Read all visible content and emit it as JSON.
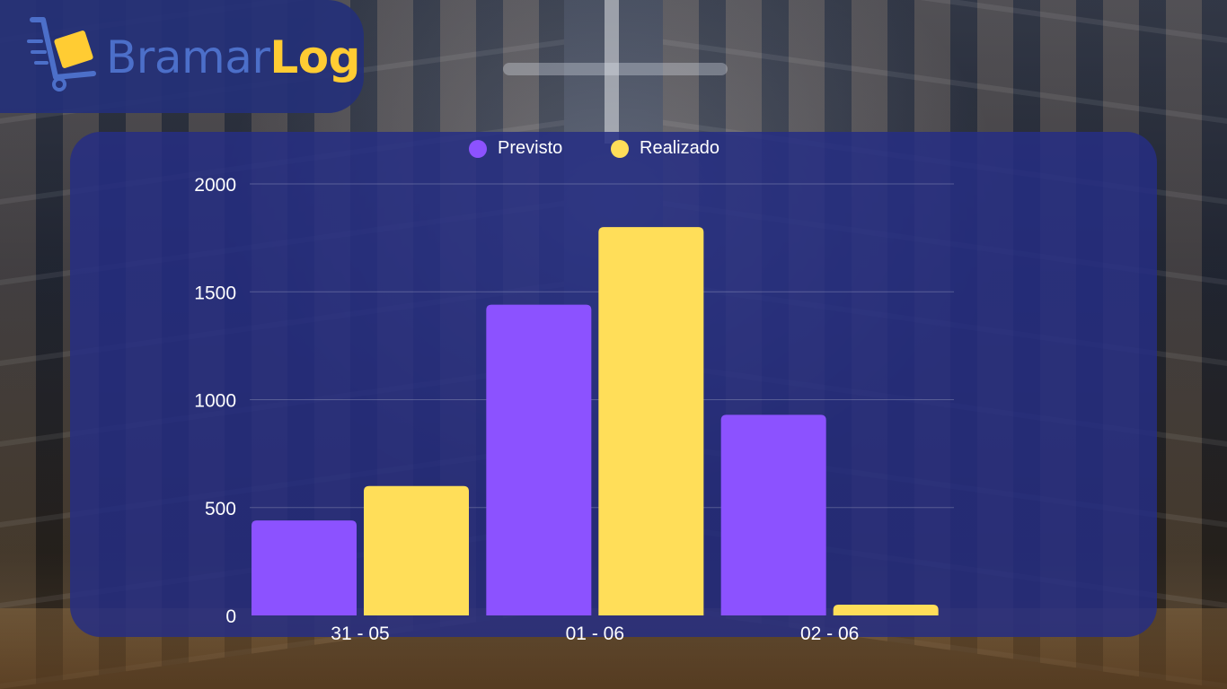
{
  "logo": {
    "text_part1": "Bramar",
    "text_part2": "Log",
    "icon": "cart-with-box-icon"
  },
  "colors": {
    "previsto": "#8c52ff",
    "realizado": "#ffde59",
    "panel": "#262e84",
    "logo_blue": "#4c6fc9",
    "logo_yellow": "#ffcc33"
  },
  "chart_data": {
    "type": "bar",
    "title": "",
    "xlabel": "",
    "ylabel": "",
    "categories": [
      "31 - 05",
      "01 - 06",
      "02 - 06"
    ],
    "series": [
      {
        "name": "Previsto",
        "values": [
          440,
          1440,
          930
        ]
      },
      {
        "name": "Realizado",
        "values": [
          600,
          1800,
          50
        ]
      }
    ],
    "ylim": [
      0,
      2000
    ],
    "yticks": [
      0,
      500,
      1000,
      1500,
      2000
    ],
    "grid": true,
    "legend_position": "top-center"
  }
}
